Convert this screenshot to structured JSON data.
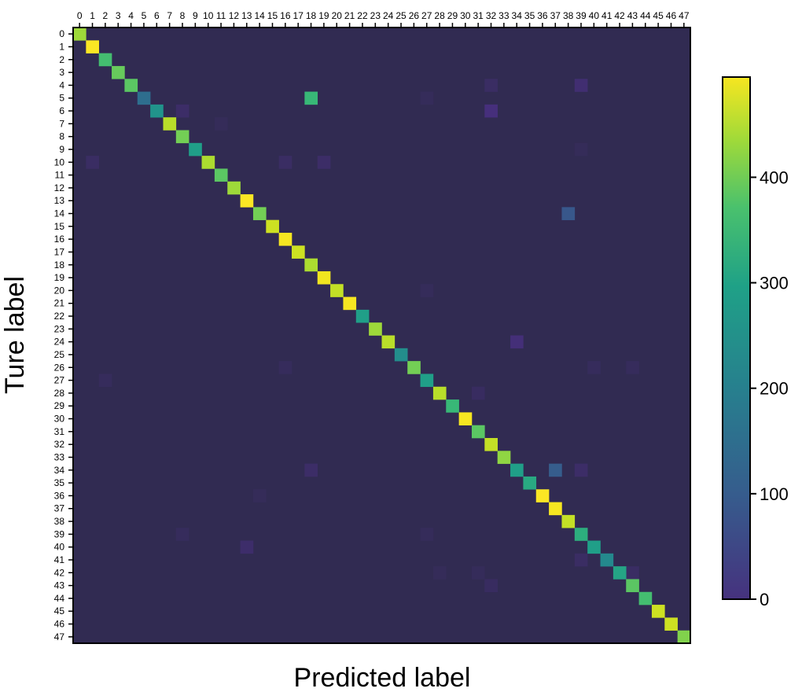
{
  "chart_data": {
    "type": "heatmap",
    "title": "",
    "xlabel": "Predicted label",
    "ylabel": "Ture label",
    "labels": [
      "0",
      "1",
      "2",
      "3",
      "4",
      "5",
      "6",
      "7",
      "8",
      "9",
      "10",
      "11",
      "12",
      "13",
      "14",
      "15",
      "16",
      "17",
      "18",
      "19",
      "20",
      "21",
      "22",
      "23",
      "24",
      "25",
      "26",
      "27",
      "28",
      "29",
      "30",
      "31",
      "32",
      "33",
      "34",
      "35",
      "36",
      "37",
      "38",
      "39",
      "40",
      "41",
      "42",
      "43",
      "44",
      "45",
      "46",
      "47"
    ],
    "diagonal": [
      380,
      490,
      310,
      340,
      330,
      160,
      230,
      400,
      350,
      250,
      390,
      330,
      380,
      490,
      350,
      420,
      480,
      420,
      390,
      470,
      410,
      480,
      250,
      380,
      400,
      220,
      350,
      250,
      400,
      300,
      480,
      330,
      410,
      370,
      250,
      270,
      490,
      480,
      410,
      280,
      250,
      210,
      260,
      330,
      310,
      420,
      420,
      360
    ],
    "off_diagonal": [
      {
        "true": 5,
        "pred": 18,
        "value": 300
      },
      {
        "true": 14,
        "pred": 38,
        "value": 120
      },
      {
        "true": 34,
        "pred": 37,
        "value": 130
      },
      {
        "true": 6,
        "pred": 32,
        "value": 60
      },
      {
        "true": 24,
        "pred": 34,
        "value": 55
      },
      {
        "true": 4,
        "pred": 39,
        "value": 45
      },
      {
        "true": 4,
        "pred": 32,
        "value": 25
      },
      {
        "true": 6,
        "pred": 8,
        "value": 30
      },
      {
        "true": 10,
        "pred": 1,
        "value": 25
      },
      {
        "true": 10,
        "pred": 16,
        "value": 25
      },
      {
        "true": 10,
        "pred": 19,
        "value": 30
      },
      {
        "true": 34,
        "pred": 18,
        "value": 30
      },
      {
        "true": 34,
        "pred": 39,
        "value": 30
      },
      {
        "true": 40,
        "pred": 13,
        "value": 35
      },
      {
        "true": 41,
        "pred": 39,
        "value": 25
      },
      {
        "true": 42,
        "pred": 43,
        "value": 25
      },
      {
        "true": 43,
        "pred": 32,
        "value": 20
      },
      {
        "true": 28,
        "pred": 31,
        "value": 20
      },
      {
        "true": 27,
        "pred": 2,
        "value": 15
      },
      {
        "true": 26,
        "pred": 16,
        "value": 15
      },
      {
        "true": 26,
        "pred": 40,
        "value": 15
      },
      {
        "true": 26,
        "pred": 43,
        "value": 15
      },
      {
        "true": 20,
        "pred": 27,
        "value": 12
      },
      {
        "true": 39,
        "pred": 8,
        "value": 15
      },
      {
        "true": 39,
        "pred": 27,
        "value": 12
      },
      {
        "true": 42,
        "pred": 31,
        "value": 12
      },
      {
        "true": 42,
        "pred": 28,
        "value": 10
      },
      {
        "true": 5,
        "pred": 27,
        "value": 12
      },
      {
        "true": 7,
        "pred": 11,
        "value": 10
      },
      {
        "true": 9,
        "pred": 39,
        "value": 10
      },
      {
        "true": 36,
        "pred": 14,
        "value": 10
      }
    ],
    "colorbar": {
      "min": 0,
      "max": 495,
      "ticks": [
        0,
        100,
        200,
        300,
        400
      ],
      "tick_labels": [
        "0",
        "100",
        "200",
        "300",
        "400"
      ],
      "colormap": "viridis"
    },
    "grid": false
  }
}
